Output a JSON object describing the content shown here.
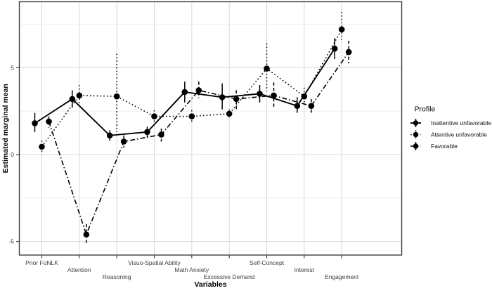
{
  "chart_data": {
    "type": "line",
    "title": "",
    "xlabel": "Variables",
    "ylabel": "Estimated marginal mean",
    "categories": [
      "Prior FoNLK",
      "Attention",
      "Reasoning",
      "Visuo-Spatial Ability",
      "Math Anxiety",
      "Excessive Demand",
      "Self-Concept",
      "Interest",
      "Engagement"
    ],
    "x_label_stagger_rows": [
      0,
      1,
      2,
      0,
      1,
      2,
      0,
      1,
      2
    ],
    "y_axis": {
      "tick_labels": [
        "5",
        "0",
        "-5"
      ],
      "ticks": [
        5,
        0,
        -5
      ],
      "minor_gridlines": [
        7.5,
        2.5,
        -2.5
      ],
      "range": [
        -5.8,
        8.8
      ]
    },
    "grid": {
      "major": true,
      "minor": true,
      "vertical_at_categories": true
    },
    "legend": {
      "title": "Profile",
      "position": "right"
    },
    "marker": "filled-circle",
    "error_bars": true,
    "series": [
      {
        "name": "Inattentive unfavorable",
        "linetype": "solid",
        "color": "#000000",
        "values": [
          1.8,
          3.2,
          1.1,
          1.3,
          3.6,
          3.3,
          3.5,
          2.8,
          6.1
        ],
        "ci_low": [
          1.3,
          2.7,
          0.8,
          1.0,
          3.0,
          2.6,
          3.0,
          2.4,
          5.5
        ],
        "ci_high": [
          2.4,
          3.7,
          1.4,
          1.6,
          4.2,
          4.1,
          4.0,
          3.3,
          6.7
        ]
      },
      {
        "name": "Attentive unfavorable",
        "linetype": "dotted",
        "color": "#000000",
        "values": [
          0.45,
          3.4,
          3.35,
          2.2,
          2.2,
          2.35,
          4.95,
          3.35,
          7.2
        ],
        "ci_low": [
          0.1,
          2.8,
          1.3,
          1.8,
          1.9,
          2.1,
          3.65,
          2.85,
          6.6
        ],
        "ci_high": [
          0.8,
          4.0,
          5.8,
          2.55,
          2.55,
          2.6,
          6.4,
          3.85,
          8.2
        ]
      },
      {
        "name": "Favorable",
        "linetype": "dashdot",
        "color": "#000000",
        "values": [
          1.9,
          -4.6,
          0.75,
          1.15,
          3.7,
          3.2,
          3.4,
          2.8,
          5.9
        ],
        "ci_low": [
          1.55,
          -5.15,
          0.4,
          0.75,
          3.25,
          2.6,
          2.7,
          2.35,
          5.25
        ],
        "ci_high": [
          2.2,
          -4.0,
          1.1,
          1.5,
          4.2,
          3.7,
          4.15,
          3.2,
          6.55
        ]
      }
    ]
  },
  "colors": {
    "background": "#ffffff",
    "panel_background": "#ffffff",
    "panel_border": "#3f3f3f",
    "grid_major": "#d9d9d9",
    "grid_minor": "#eeeeee",
    "axis_tick": "#333333",
    "tick_text": "#404040",
    "title_text": "#000000",
    "series": "#000000"
  }
}
